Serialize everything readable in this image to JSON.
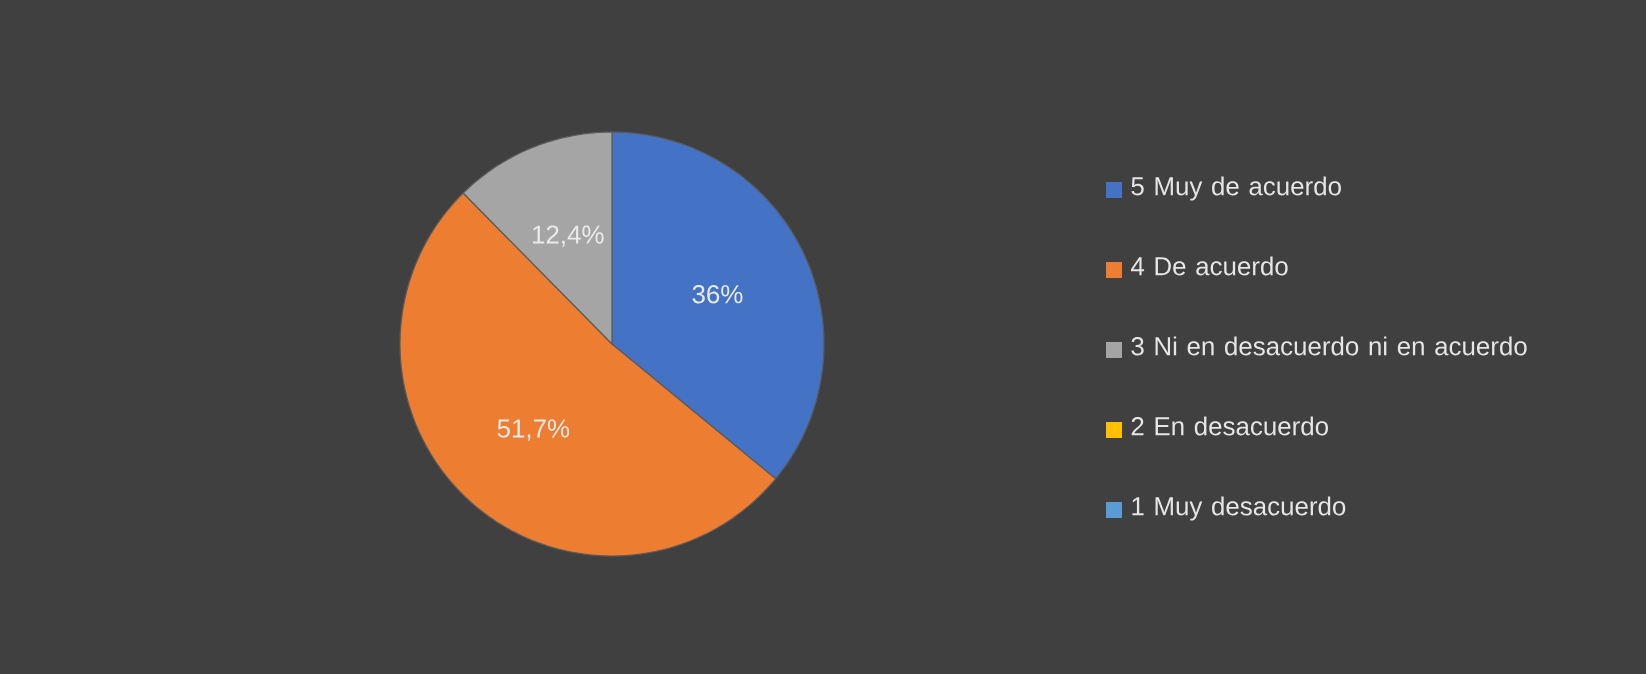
{
  "chart_data": {
    "type": "pie",
    "categories": [
      "5 Muy de acuerdo",
      "4 De acuerdo",
      "3 Ni en desacuerdo ni en acuerdo",
      "2 En desacuerdo",
      "1 Muy desacuerdo"
    ],
    "values": [
      36,
      51.7,
      12.4,
      0,
      0
    ],
    "colors": [
      "#4472c4",
      "#ed7d31",
      "#a5a5a5",
      "#ffc000",
      "#5b9bd5"
    ],
    "value_labels": [
      "36%",
      "51,7%",
      "12,4%",
      null,
      null
    ],
    "legend": "right"
  }
}
